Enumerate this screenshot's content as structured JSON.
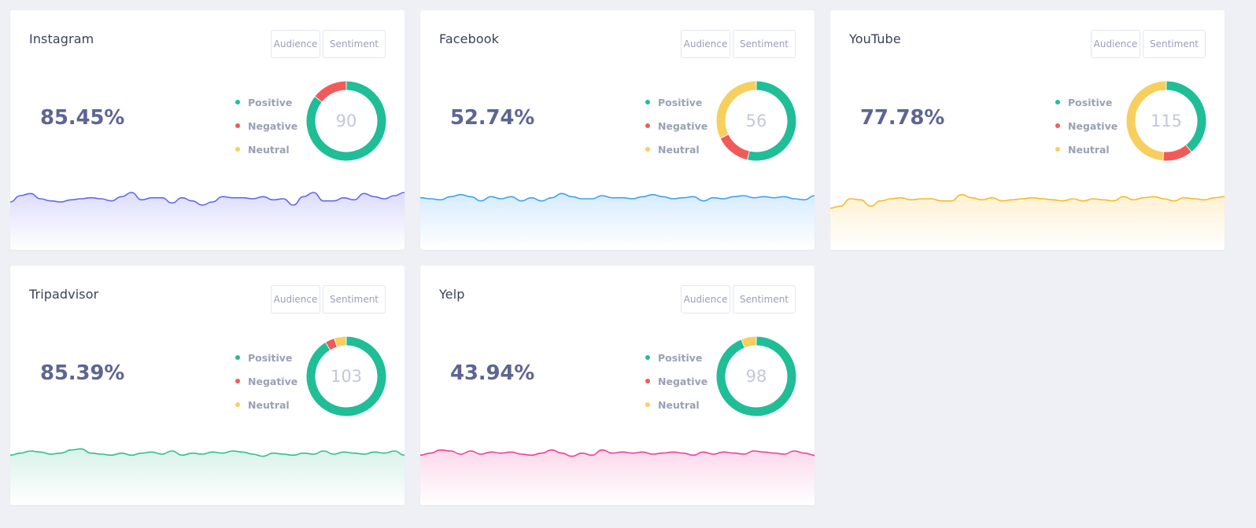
{
  "buttons": {
    "audience": "Audience",
    "sentiment": "Sentiment"
  },
  "legend": {
    "positive": "Positive",
    "negative": "Negative",
    "neutral": "Neutral"
  },
  "colors": {
    "positive": "#1fbe97",
    "negative": "#f25a5a",
    "neutral": "#f7cf5f",
    "background": "#eff0f5"
  },
  "cards": [
    {
      "title": "Instagram",
      "percent": "85.45%",
      "total": "90",
      "segments": [
        {
          "name": "Positive",
          "value": 77
        },
        {
          "name": "Negative",
          "value": 13
        },
        {
          "name": "Neutral",
          "value": 0
        }
      ],
      "wave_color": "#6267ef",
      "wave_fill": "#dcdcfc",
      "wave": [
        48,
        42,
        40,
        45,
        47,
        48,
        46,
        45,
        44,
        45,
        47,
        43,
        39,
        46,
        44,
        44,
        49,
        44,
        47,
        51,
        48,
        43,
        44,
        44,
        45,
        43,
        46,
        45,
        51,
        43,
        39,
        47,
        47,
        44,
        46,
        40,
        43,
        45,
        42,
        39
      ]
    },
    {
      "title": "Facebook",
      "percent": "52.74%",
      "total": "56",
      "segments": [
        {
          "name": "Positive",
          "value": 30
        },
        {
          "name": "Negative",
          "value": 8
        },
        {
          "name": "Neutral",
          "value": 18
        }
      ],
      "wave_color": "#3ea2f0",
      "wave_fill": "#d6ebfd",
      "wave": [
        44,
        45,
        46,
        43,
        41,
        43,
        47,
        43,
        45,
        43,
        47,
        44,
        47,
        44,
        40,
        43,
        45,
        45,
        42,
        44,
        44,
        45,
        43,
        41,
        43,
        45,
        44,
        43,
        47,
        44,
        45,
        43,
        42,
        44,
        43,
        44,
        43,
        45,
        46,
        42
      ]
    },
    {
      "title": "YouTube",
      "percent": "77.78%",
      "total": "115",
      "segments": [
        {
          "name": "Positive",
          "value": 45
        },
        {
          "name": "Negative",
          "value": 14
        },
        {
          "name": "Neutral",
          "value": 56
        }
      ],
      "wave_color": "#f9b923",
      "wave_fill": "#fff1d2",
      "wave": [
        54,
        52,
        45,
        46,
        52,
        47,
        45,
        44,
        46,
        45,
        45,
        47,
        47,
        41,
        44,
        46,
        44,
        47,
        46,
        45,
        44,
        45,
        46,
        47,
        45,
        47,
        45,
        46,
        47,
        43,
        46,
        44,
        43,
        45,
        47,
        44,
        45,
        46,
        44,
        43
      ]
    },
    {
      "title": "Tripadvisor",
      "percent": "85.39%",
      "total": "103",
      "segments": [
        {
          "name": "Positive",
          "value": 94
        },
        {
          "name": "Negative",
          "value": 4
        },
        {
          "name": "Neutral",
          "value": 5
        }
      ],
      "wave_color": "#2fbf8f",
      "wave_fill": "#d8f2e8",
      "wave": [
        46,
        44,
        42,
        43,
        45,
        44,
        41,
        40,
        44,
        45,
        46,
        44,
        46,
        44,
        43,
        45,
        42,
        46,
        44,
        45,
        43,
        44,
        42,
        43,
        45,
        47,
        44,
        45,
        46,
        44,
        45,
        42,
        45,
        43,
        44,
        45,
        43,
        44,
        42,
        46
      ]
    },
    {
      "title": "Yelp",
      "percent": "43.94%",
      "total": "98",
      "segments": [
        {
          "name": "Positive",
          "value": 92
        },
        {
          "name": "Negative",
          "value": 0
        },
        {
          "name": "Neutral",
          "value": 6
        }
      ],
      "wave_color": "#f43c97",
      "wave_fill": "#fdd8eb",
      "wave": [
        46,
        44,
        41,
        42,
        45,
        42,
        45,
        43,
        44,
        43,
        45,
        46,
        44,
        41,
        44,
        47,
        44,
        46,
        41,
        44,
        43,
        44,
        43,
        45,
        44,
        43,
        44,
        46,
        43,
        45,
        43,
        44,
        45,
        42,
        43,
        44,
        45,
        42,
        44,
        46
      ]
    }
  ]
}
